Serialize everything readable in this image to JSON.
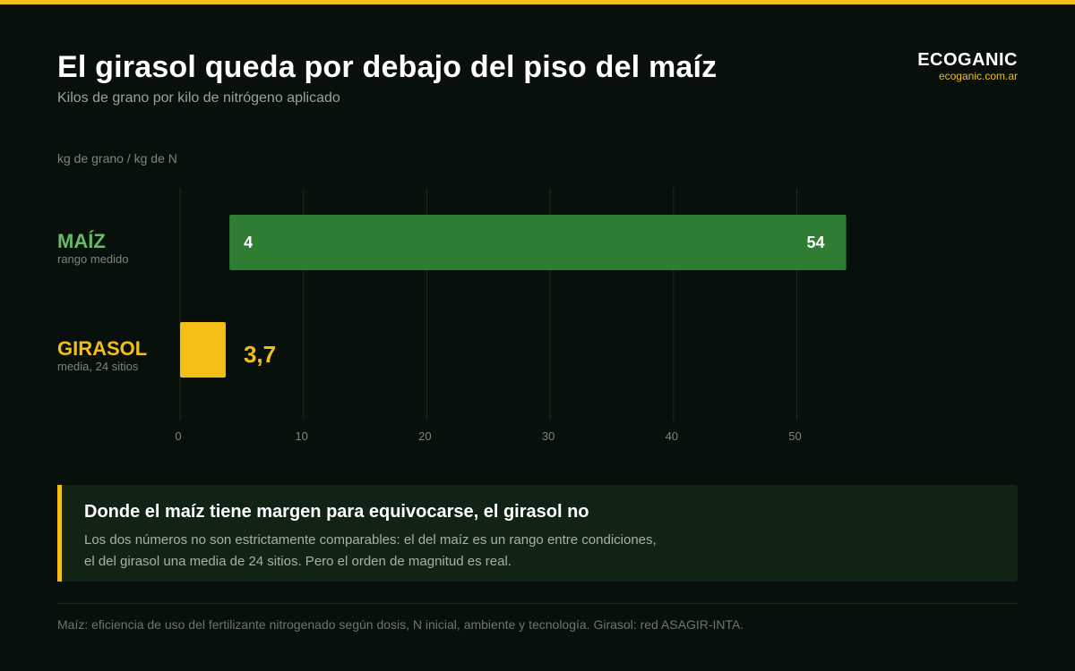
{
  "header": {
    "title": "El girasol queda por debajo del piso del maíz",
    "subtitle": "Kilos de grano por kilo de nitrógeno aplicado"
  },
  "brand": {
    "name": "ECOGANIC",
    "url": "ecoganic.com.ar"
  },
  "chart_data": {
    "type": "bar",
    "orientation": "horizontal",
    "ylabel": "kg de grano / kg de N",
    "xlim": [
      0,
      54
    ],
    "x_ticks": [
      "0",
      "10",
      "20",
      "30",
      "40",
      "50"
    ],
    "tick_values": [
      0,
      10,
      20,
      30,
      40,
      50
    ],
    "grid": true,
    "series": [
      {
        "name": "MAÍZ",
        "note": "rango medido",
        "kind": "range",
        "start": 4,
        "end": 54,
        "start_label": "4",
        "end_label": "54",
        "color": "#2e7d32",
        "label_color": "#66bb6a"
      },
      {
        "name": "GIRASOL",
        "note": "media, 24 sitios",
        "kind": "value",
        "start": 0,
        "end": 3.7,
        "value_label": "3,7",
        "color": "#f5be16",
        "label_color": "#f5be16"
      }
    ]
  },
  "callout": {
    "title": "Donde el maíz tiene margen para equivocarse, el girasol no",
    "body_line1": "Los dos números no son estrictamente comparables: el del maíz es un rango entre condiciones,",
    "body_line2": "el del girasol una media de 24 sitios. Pero el orden de magnitud es real."
  },
  "footnote": "Maíz: eficiencia de uso del fertilizante nitrogenado según dosis, N inicial, ambiente y tecnología. Girasol: red ASAGIR-INTA."
}
